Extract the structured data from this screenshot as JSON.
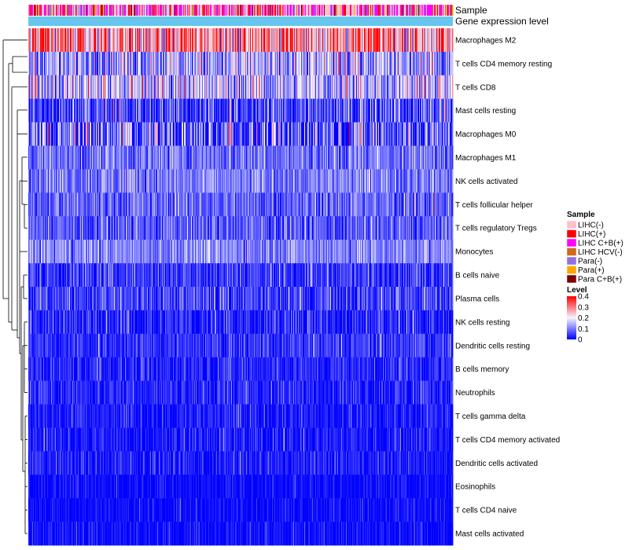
{
  "chart_data": {
    "type": "heatmap",
    "title": "",
    "annotation_tracks": [
      "Sample",
      "Gene expression level"
    ],
    "rows": [
      {
        "name": "Macrophages M2",
        "mean": 0.28,
        "spread": 0.1
      },
      {
        "name": "T cells CD4 memory resting",
        "mean": 0.13,
        "spread": 0.07
      },
      {
        "name": "T cells CD8",
        "mean": 0.15,
        "spread": 0.07
      },
      {
        "name": "Mast cells resting",
        "mean": 0.06,
        "spread": 0.06
      },
      {
        "name": "Macrophages M0",
        "mean": 0.07,
        "spread": 0.09
      },
      {
        "name": "Macrophages M1",
        "mean": 0.09,
        "spread": 0.04
      },
      {
        "name": "NK cells activated",
        "mean": 0.1,
        "spread": 0.04
      },
      {
        "name": "T cells follicular helper",
        "mean": 0.08,
        "spread": 0.04
      },
      {
        "name": "T cells regulatory  Tregs",
        "mean": 0.07,
        "spread": 0.04
      },
      {
        "name": "Monocytes",
        "mean": 0.11,
        "spread": 0.04
      },
      {
        "name": "B cells naive",
        "mean": 0.05,
        "spread": 0.04
      },
      {
        "name": "Plasma cells",
        "mean": 0.05,
        "spread": 0.04
      },
      {
        "name": "NK cells resting",
        "mean": 0.03,
        "spread": 0.04
      },
      {
        "name": "Dendritic cells resting",
        "mean": 0.04,
        "spread": 0.03
      },
      {
        "name": "B cells memory",
        "mean": 0.03,
        "spread": 0.03
      },
      {
        "name": "Neutrophils",
        "mean": 0.03,
        "spread": 0.03
      },
      {
        "name": "T cells gamma delta",
        "mean": 0.02,
        "spread": 0.03
      },
      {
        "name": "T cells CD4 memory activated",
        "mean": 0.02,
        "spread": 0.03
      },
      {
        "name": "Dendritic cells activated",
        "mean": 0.02,
        "spread": 0.03
      },
      {
        "name": "Eosinophils",
        "mean": 0.01,
        "spread": 0.02
      },
      {
        "name": "T cells CD4 naive",
        "mean": 0.01,
        "spread": 0.02
      },
      {
        "name": "Mast cells activated",
        "mean": 0.01,
        "spread": 0.02
      }
    ],
    "n_samples": 540,
    "sample_groups": [
      {
        "label": "LIHC(-)",
        "color": "#ffc0cb",
        "weight": 0.34
      },
      {
        "label": "LIHC(+)",
        "color": "#ff0000",
        "weight": 0.14
      },
      {
        "label": "LIHC C+B(+)",
        "color": "#ff00ff",
        "weight": 0.28
      },
      {
        "label": "LIHC HCV(-)",
        "color": "#d2691e",
        "weight": 0.05
      },
      {
        "label": "Para(-)",
        "color": "#9370db",
        "weight": 0.12
      },
      {
        "label": "Para(+)",
        "color": "#ffa500",
        "weight": 0.04
      },
      {
        "label": "Para C+B(+)",
        "color": "#800000",
        "weight": 0.03
      }
    ],
    "expression_level_color": "#67c6ee",
    "color_scale": {
      "title": "Level",
      "stops": [
        {
          "value": 0,
          "color": "#0000ff"
        },
        {
          "value": 0.2,
          "color": "#f5f5ff"
        },
        {
          "value": 0.4,
          "color": "#ff0000"
        }
      ],
      "ticks": [
        "0.4",
        "0.3",
        "0.2",
        "0.1",
        "0"
      ]
    },
    "legends": {
      "sample_title": "Sample",
      "level_title": "Level"
    }
  }
}
